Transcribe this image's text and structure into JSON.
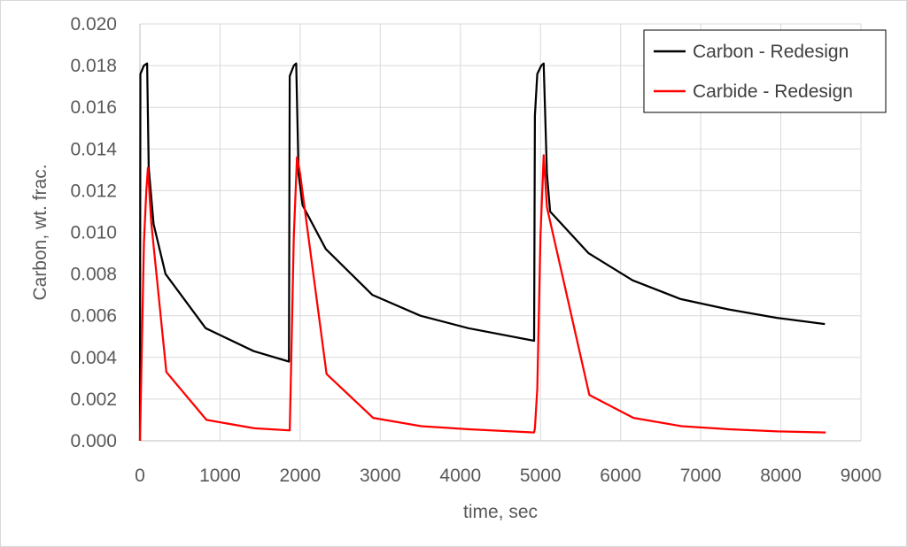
{
  "chart_data": {
    "type": "line",
    "title": "",
    "xlabel": "time, sec",
    "ylabel": "Carbon, wt. frac.",
    "xlim": [
      0,
      9000
    ],
    "ylim": [
      0,
      0.02
    ],
    "xticks": [
      0,
      1000,
      2000,
      3000,
      4000,
      5000,
      6000,
      7000,
      8000,
      9000
    ],
    "yticks": [
      0.0,
      0.002,
      0.004,
      0.006,
      0.008,
      0.01,
      0.012,
      0.014,
      0.016,
      0.018,
      0.02
    ],
    "xtick_labels": [
      "0",
      "1000",
      "2000",
      "3000",
      "4000",
      "5000",
      "6000",
      "7000",
      "8000",
      "9000"
    ],
    "ytick_labels": [
      "0.000",
      "0.002",
      "0.004",
      "0.006",
      "0.008",
      "0.010",
      "0.012",
      "0.014",
      "0.016",
      "0.018",
      "0.020"
    ],
    "grid": true,
    "legend_position": "top-right",
    "series": [
      {
        "name": "Carbon - Redesign",
        "color": "#000000",
        "points": [
          [
            0,
            0.0
          ],
          [
            5,
            0.0176
          ],
          [
            50,
            0.018
          ],
          [
            90,
            0.0181
          ],
          [
            110,
            0.0131
          ],
          [
            170,
            0.0104
          ],
          [
            320,
            0.008
          ],
          [
            820,
            0.0054
          ],
          [
            1420,
            0.0043
          ],
          [
            1860,
            0.0038
          ],
          [
            1870,
            0.0175
          ],
          [
            1920,
            0.018
          ],
          [
            1950,
            0.0181
          ],
          [
            1980,
            0.0128
          ],
          [
            2030,
            0.0113
          ],
          [
            2320,
            0.0092
          ],
          [
            2900,
            0.007
          ],
          [
            3500,
            0.006
          ],
          [
            4100,
            0.0054
          ],
          [
            4920,
            0.0048
          ],
          [
            4930,
            0.0156
          ],
          [
            4960,
            0.0176
          ],
          [
            5010,
            0.018
          ],
          [
            5040,
            0.0181
          ],
          [
            5080,
            0.0128
          ],
          [
            5120,
            0.011
          ],
          [
            5600,
            0.009
          ],
          [
            6150,
            0.0077
          ],
          [
            6750,
            0.0068
          ],
          [
            7350,
            0.0063
          ],
          [
            7950,
            0.0059
          ],
          [
            8550,
            0.0056
          ]
        ]
      },
      {
        "name": "Carbide - Redesign",
        "color": "#ff0000",
        "points": [
          [
            0,
            0.0
          ],
          [
            50,
            0.0095
          ],
          [
            80,
            0.012
          ],
          [
            100,
            0.0131
          ],
          [
            140,
            0.0105
          ],
          [
            330,
            0.0033
          ],
          [
            830,
            0.001
          ],
          [
            1430,
            0.0006
          ],
          [
            1870,
            0.0005
          ],
          [
            1880,
            0.0022
          ],
          [
            1920,
            0.0098
          ],
          [
            1960,
            0.0136
          ],
          [
            2000,
            0.0128
          ],
          [
            2020,
            0.0122
          ],
          [
            2330,
            0.0032
          ],
          [
            2910,
            0.0011
          ],
          [
            3510,
            0.0007
          ],
          [
            4110,
            0.00055
          ],
          [
            4920,
            0.0004
          ],
          [
            4930,
            0.0006
          ],
          [
            4960,
            0.0025
          ],
          [
            5000,
            0.0098
          ],
          [
            5040,
            0.0137
          ],
          [
            5080,
            0.0112
          ],
          [
            5610,
            0.0022
          ],
          [
            6160,
            0.0011
          ],
          [
            6760,
            0.0007
          ],
          [
            7360,
            0.00055
          ],
          [
            7960,
            0.00045
          ],
          [
            8560,
            0.0004
          ]
        ]
      }
    ]
  }
}
